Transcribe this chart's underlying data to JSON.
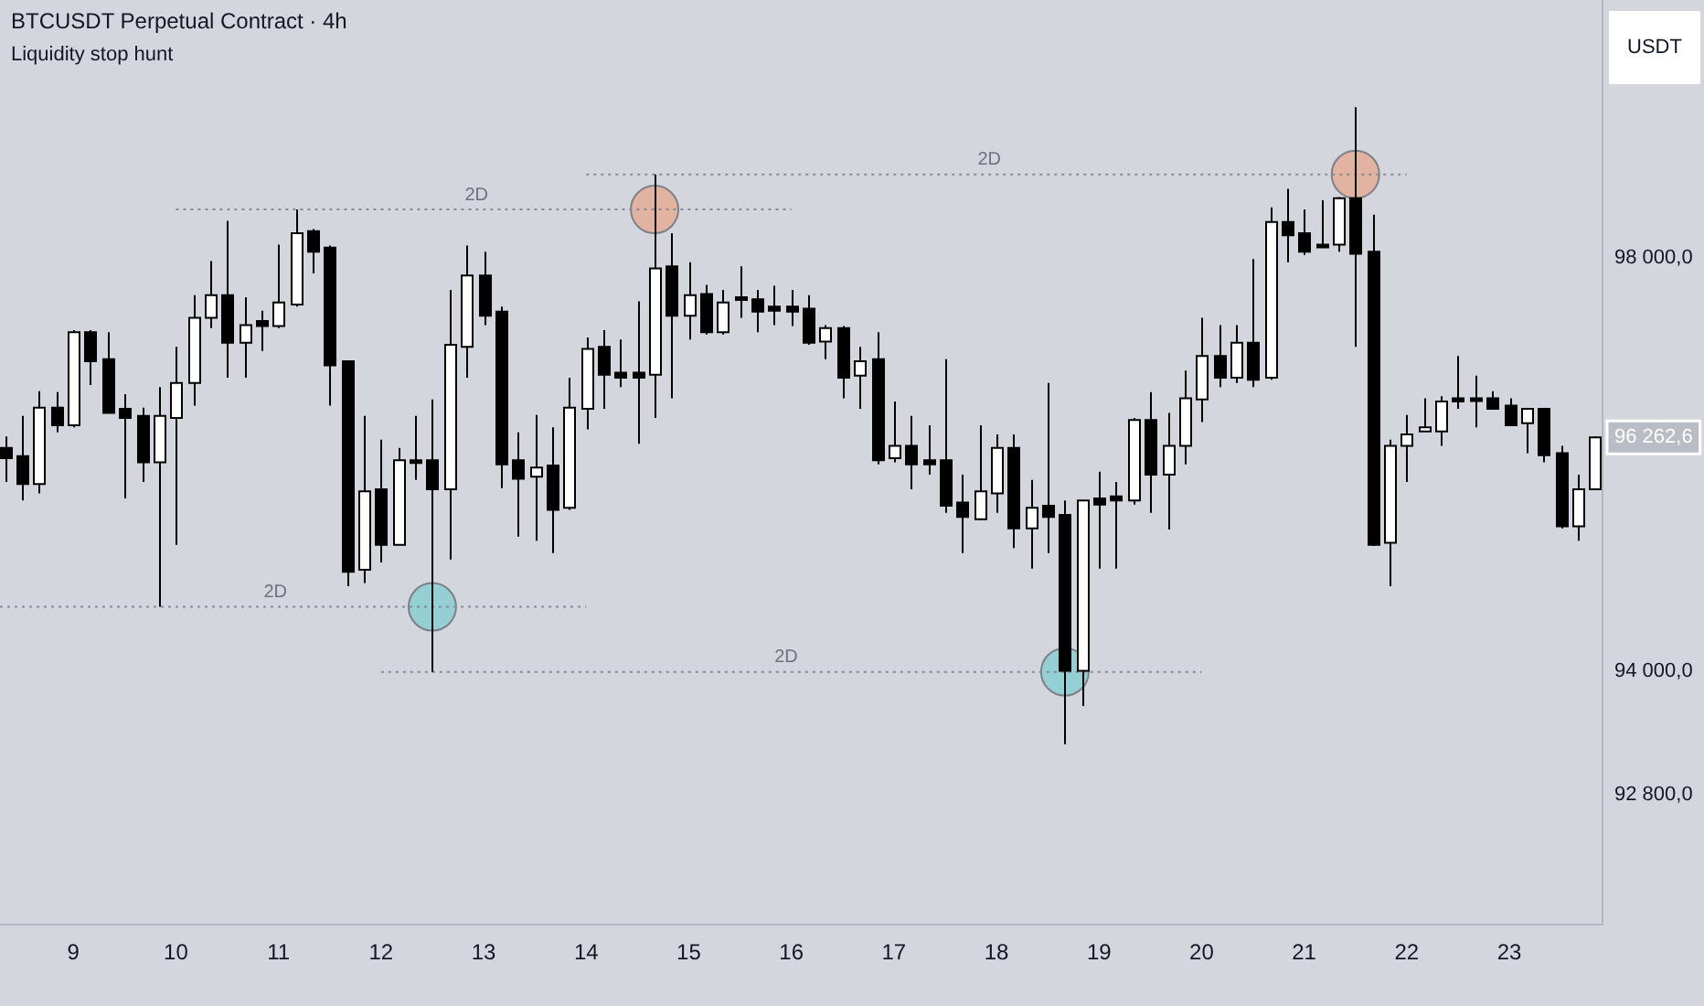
{
  "chart_data": {
    "type": "candlestick",
    "title": "BTCUSDT Perpetual Contract · 4h",
    "subtitle": "Liquidity stop hunt",
    "ylabel": "USDT",
    "color": "#000000",
    "x": [
      8.333,
      8.5,
      8.667,
      8.833,
      9,
      9.167,
      9.333,
      9.5,
      9.667,
      9.833,
      10,
      10.167,
      10.333,
      10.5,
      10.667,
      10.833,
      11,
      11.167,
      11.333,
      11.5,
      11.667,
      11.833,
      12,
      12.167,
      12.333,
      12.5,
      12.667,
      12.833,
      13,
      13.167,
      13.333,
      13.5,
      13.667,
      13.833,
      14,
      14.167,
      14.333,
      14.5,
      14.667,
      14.833,
      15,
      15.167,
      15.333,
      15.5,
      15.667,
      15.833,
      16,
      16.167,
      16.333,
      16.5,
      16.667,
      16.833,
      17,
      17.167,
      17.333,
      17.5,
      17.667,
      17.833,
      18,
      18.167,
      18.333,
      18.5,
      18.667,
      18.833,
      19,
      19.167,
      19.333,
      19.5,
      19.667,
      19.833,
      20,
      20.167,
      20.333,
      20.5,
      20.667,
      20.833,
      21,
      21.167,
      21.333,
      21.5,
      21.667,
      21.833,
      22,
      22.167,
      22.333,
      22.5,
      22.667,
      22.833,
      23,
      23.167,
      23.333,
      23.5,
      23.667,
      23.833
    ],
    "ohlc": [
      [
        96160,
        96270,
        95830,
        96060
      ],
      [
        96080,
        96470,
        95650,
        95810
      ],
      [
        95810,
        96710,
        95720,
        96550
      ],
      [
        96550,
        96700,
        96310,
        96380
      ],
      [
        96380,
        97300,
        96360,
        97280
      ],
      [
        97280,
        97300,
        96770,
        97000
      ],
      [
        97020,
        97280,
        96500,
        96500
      ],
      [
        96540,
        96680,
        95670,
        96450
      ],
      [
        96470,
        96550,
        95830,
        96020
      ],
      [
        96020,
        96750,
        94620,
        96470
      ],
      [
        96450,
        97140,
        95220,
        96790
      ],
      [
        96790,
        97640,
        96570,
        97420
      ],
      [
        97420,
        97970,
        97320,
        97640
      ],
      [
        97640,
        98360,
        96840,
        97180
      ],
      [
        97180,
        97620,
        96840,
        97350
      ],
      [
        97390,
        97490,
        97100,
        97340
      ],
      [
        97340,
        98130,
        97320,
        97570
      ],
      [
        97550,
        98470,
        97530,
        98240
      ],
      [
        98260,
        98280,
        97850,
        98060
      ],
      [
        98100,
        98120,
        96570,
        96960
      ],
      [
        97000,
        97000,
        94820,
        94960
      ],
      [
        94980,
        96470,
        94850,
        95740
      ],
      [
        95760,
        96240,
        95050,
        95220
      ],
      [
        95220,
        96160,
        95220,
        96040
      ],
      [
        96040,
        96470,
        95850,
        96020
      ],
      [
        96040,
        96630,
        93990,
        95760
      ],
      [
        95760,
        97690,
        95080,
        97160
      ],
      [
        97140,
        98120,
        96840,
        97830
      ],
      [
        97830,
        98060,
        97350,
        97440
      ],
      [
        97480,
        97530,
        95770,
        96000
      ],
      [
        96040,
        96310,
        95300,
        95860
      ],
      [
        95880,
        96480,
        95260,
        95970
      ],
      [
        95990,
        96360,
        95140,
        95560
      ],
      [
        95580,
        96840,
        95560,
        96550
      ],
      [
        96540,
        97230,
        96340,
        97120
      ],
      [
        97140,
        97300,
        96540,
        96870
      ],
      [
        96890,
        97210,
        96750,
        96840
      ],
      [
        96890,
        97580,
        96200,
        96840
      ],
      [
        96870,
        98810,
        96450,
        97900
      ],
      [
        97920,
        98240,
        96640,
        97440
      ],
      [
        97440,
        97960,
        97210,
        97640
      ],
      [
        97650,
        97740,
        97260,
        97280
      ],
      [
        97280,
        97690,
        97260,
        97570
      ],
      [
        97620,
        97920,
        97420,
        97600
      ],
      [
        97600,
        97690,
        97280,
        97480
      ],
      [
        97530,
        97730,
        97350,
        97490
      ],
      [
        97530,
        97690,
        97340,
        97480
      ],
      [
        97510,
        97640,
        97160,
        97180
      ],
      [
        97190,
        97350,
        97020,
        97320
      ],
      [
        97320,
        97340,
        96640,
        96840
      ],
      [
        96860,
        97140,
        96540,
        97000
      ],
      [
        97020,
        97280,
        96000,
        96040
      ],
      [
        96060,
        96610,
        96020,
        96180
      ],
      [
        96180,
        96470,
        95760,
        96000
      ],
      [
        96040,
        96380,
        95900,
        96000
      ],
      [
        96040,
        97020,
        95530,
        95600
      ],
      [
        95630,
        95900,
        95140,
        95490
      ],
      [
        95470,
        96380,
        95460,
        95740
      ],
      [
        95720,
        96290,
        95530,
        96160
      ],
      [
        96160,
        96290,
        95190,
        95380
      ],
      [
        95380,
        95850,
        94990,
        95580
      ],
      [
        95600,
        96790,
        95140,
        95490
      ],
      [
        95510,
        95650,
        93290,
        94000
      ],
      [
        94000,
        95650,
        93660,
        95650
      ],
      [
        95670,
        95930,
        94990,
        95610
      ],
      [
        95690,
        95830,
        94990,
        95650
      ],
      [
        95650,
        96450,
        95610,
        96430
      ],
      [
        96430,
        96700,
        95530,
        95900
      ],
      [
        95900,
        96500,
        95370,
        96180
      ],
      [
        96180,
        96910,
        96000,
        96640
      ],
      [
        96630,
        97420,
        96410,
        97050
      ],
      [
        97050,
        97350,
        96750,
        96840
      ],
      [
        96840,
        97350,
        96790,
        97180
      ],
      [
        97180,
        97990,
        96750,
        96820
      ],
      [
        96840,
        98490,
        96820,
        98350
      ],
      [
        98350,
        98670,
        97960,
        98220
      ],
      [
        98240,
        98470,
        98030,
        98060
      ],
      [
        98130,
        98560,
        98120,
        98120
      ],
      [
        98130,
        98590,
        98060,
        98580
      ],
      [
        98580,
        99460,
        97140,
        98040
      ],
      [
        98060,
        98420,
        95210,
        95220
      ],
      [
        95240,
        96240,
        94820,
        96180
      ],
      [
        96180,
        96480,
        95830,
        96290
      ],
      [
        96320,
        96640,
        96320,
        96360
      ],
      [
        96320,
        96660,
        96180,
        96610
      ],
      [
        96640,
        97050,
        96540,
        96610
      ],
      [
        96640,
        96860,
        96360,
        96620
      ],
      [
        96640,
        96710,
        96540,
        96540
      ],
      [
        96570,
        96640,
        96380,
        96380
      ],
      [
        96400,
        96540,
        96110,
        96540
      ],
      [
        96540,
        96540,
        96020,
        96090
      ],
      [
        96110,
        96180,
        95380,
        95400
      ],
      [
        95400,
        95900,
        95260,
        95760
      ],
      [
        95760,
        96270,
        95760,
        96262.6
      ]
    ],
    "colors": [
      "#000000",
      "#000000",
      "#ffffff",
      "#000000",
      "#ffffff",
      "#000000",
      "#000000",
      "#000000",
      "#000000",
      "#ffffff",
      "#ffffff",
      "#ffffff",
      "#ffffff",
      "#000000",
      "#ffffff",
      "#000000",
      "#ffffff",
      "#ffffff",
      "#000000",
      "#000000",
      "#000000",
      "#ffffff",
      "#000000",
      "#ffffff",
      "#000000",
      "#000000",
      "#ffffff",
      "#ffffff",
      "#000000",
      "#000000",
      "#000000",
      "#ffffff",
      "#000000",
      "#ffffff",
      "#ffffff",
      "#000000",
      "#000000",
      "#000000",
      "#ffffff",
      "#000000",
      "#ffffff",
      "#000000",
      "#ffffff",
      "#000000",
      "#000000",
      "#000000",
      "#000000",
      "#000000",
      "#ffffff",
      "#000000",
      "#ffffff",
      "#000000",
      "#ffffff",
      "#000000",
      "#000000",
      "#000000",
      "#000000",
      "#ffffff",
      "#ffffff",
      "#000000",
      "#ffffff",
      "#000000",
      "#000000",
      "#ffffff",
      "#000000",
      "#000000",
      "#ffffff",
      "#000000",
      "#ffffff",
      "#ffffff",
      "#ffffff",
      "#000000",
      "#ffffff",
      "#000000",
      "#ffffff",
      "#000000",
      "#000000",
      "#000000",
      "#ffffff",
      "#000000",
      "#000000",
      "#ffffff",
      "#ffffff",
      "#ffffff",
      "#ffffff",
      "#000000",
      "#000000",
      "#000000",
      "#000000",
      "#ffffff",
      "#000000",
      "#000000",
      "#ffffff",
      "#ffffff"
    ],
    "series": [
      {
        "type": "line",
        "x": [
          10,
          16
        ],
        "values": [
          98470,
          98470
        ],
        "color": "#878a93",
        "line_style": "dotted"
      },
      {
        "type": "line",
        "x": [
          14,
          22
        ],
        "values": [
          98810,
          98810
        ],
        "color": "#878a93",
        "line_style": "dotted"
      },
      {
        "type": "line",
        "x": [
          8.285,
          14
        ],
        "values": [
          94620,
          94620
        ],
        "color": "#878a93",
        "line_style": "dotted"
      },
      {
        "type": "line",
        "x": [
          12,
          20
        ],
        "values": [
          93990,
          93990
        ],
        "color": "#878a93",
        "line_style": "dotted"
      },
      {
        "type": "scatter",
        "x": [
          12.5,
          18.667
        ],
        "values": [
          94620,
          93990
        ],
        "color": "#93cfd3",
        "marker": "circle"
      },
      {
        "type": "scatter",
        "x": [
          14.667,
          21.5
        ],
        "values": [
          98470,
          98810
        ],
        "color": "#e3b3a2",
        "marker": "circle"
      }
    ],
    "annotations": [
      {
        "text": "2D",
        "x": 12.93,
        "y": 98470
      },
      {
        "text": "2D",
        "x": 17.93,
        "y": 98810
      },
      {
        "text": "2D",
        "x": 10.97,
        "y": 94620
      },
      {
        "text": "2D",
        "x": 15.95,
        "y": 93990
      }
    ],
    "xlim": [
      8.285,
      23.9
    ],
    "xticks": [
      9,
      10,
      11,
      12,
      13,
      14,
      15,
      16,
      17,
      18,
      19,
      20,
      21,
      22,
      23
    ],
    "ylim": [
      91550,
      100500
    ],
    "yticks": [
      {
        "value": 92800,
        "label": "92 800,0"
      },
      {
        "value": 94000,
        "label": "94 000,0"
      },
      {
        "value": 96262.6,
        "label": "96 262,6"
      },
      {
        "value": 98000,
        "label": "98 000,0"
      }
    ]
  }
}
